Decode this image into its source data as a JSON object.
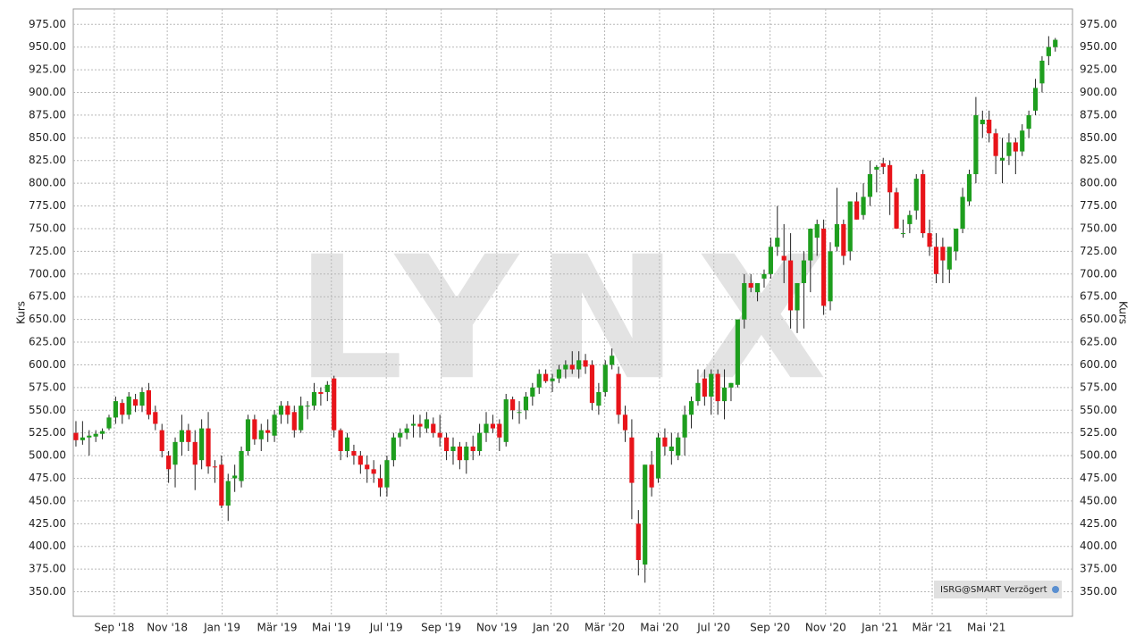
{
  "chart_data": {
    "type": "candlestick",
    "y_label": "Kurs",
    "watermark": "LYNX",
    "source_note": "ISRG@SMART Verzögert",
    "up_color": "#1e9e1e",
    "down_color": "#e8141a",
    "grid": true,
    "ylim": [
      323,
      992
    ],
    "yticks": [
      {
        "value": 350,
        "label": "350.00"
      },
      {
        "value": 375,
        "label": "375.00"
      },
      {
        "value": 400,
        "label": "400.00"
      },
      {
        "value": 425,
        "label": "425.00"
      },
      {
        "value": 450,
        "label": "450.00"
      },
      {
        "value": 475,
        "label": "475.00"
      },
      {
        "value": 500,
        "label": "500.00"
      },
      {
        "value": 525,
        "label": "525.00"
      },
      {
        "value": 550,
        "label": "550.00"
      },
      {
        "value": 575,
        "label": "575.00"
      },
      {
        "value": 600,
        "label": "600.00"
      },
      {
        "value": 625,
        "label": "625.00"
      },
      {
        "value": 650,
        "label": "650.00"
      },
      {
        "value": 675,
        "label": "675.00"
      },
      {
        "value": 700,
        "label": "700.00"
      },
      {
        "value": 725,
        "label": "725.00"
      },
      {
        "value": 750,
        "label": "750.00"
      },
      {
        "value": 775,
        "label": "775.00"
      },
      {
        "value": 800,
        "label": "800.00"
      },
      {
        "value": 825,
        "label": "825.00"
      },
      {
        "value": 850,
        "label": "850.00"
      },
      {
        "value": 875,
        "label": "875.00"
      },
      {
        "value": 900,
        "label": "900.00"
      },
      {
        "value": 925,
        "label": "925.00"
      },
      {
        "value": 950,
        "label": "950.00"
      },
      {
        "value": 975,
        "label": "975.00"
      }
    ],
    "xlim": [
      -0.4,
      150.6
    ],
    "xticks": [
      {
        "value": 5.8,
        "label": "Sep '18"
      },
      {
        "value": 13.8,
        "label": "Nov '18"
      },
      {
        "value": 22.1,
        "label": "Jan '19"
      },
      {
        "value": 30.4,
        "label": "Mär '19"
      },
      {
        "value": 38.6,
        "label": "Mai '19"
      },
      {
        "value": 46.9,
        "label": "Jul '19"
      },
      {
        "value": 55.2,
        "label": "Sep '19"
      },
      {
        "value": 63.6,
        "label": "Nov '19"
      },
      {
        "value": 71.8,
        "label": "Jan '20"
      },
      {
        "value": 79.9,
        "label": "Mär '20"
      },
      {
        "value": 88.2,
        "label": "Mai '20"
      },
      {
        "value": 96.4,
        "label": "Jul '20"
      },
      {
        "value": 104.9,
        "label": "Sep '20"
      },
      {
        "value": 113.3,
        "label": "Nov '20"
      },
      {
        "value": 121.5,
        "label": "Jan '21"
      },
      {
        "value": 129.4,
        "label": "Mär '21"
      },
      {
        "value": 137.6,
        "label": "Mai '21"
      }
    ],
    "candles": [
      [
        525,
        538,
        510,
        517
      ],
      [
        517,
        538,
        512,
        520
      ],
      [
        520,
        528,
        500,
        522
      ],
      [
        521,
        528,
        515,
        524
      ],
      [
        524,
        530,
        518,
        527
      ],
      [
        530,
        545,
        528,
        542
      ],
      [
        542,
        565,
        535,
        560
      ],
      [
        558,
        562,
        535,
        545
      ],
      [
        545,
        570,
        540,
        565
      ],
      [
        562,
        568,
        548,
        555
      ],
      [
        555,
        575,
        548,
        570
      ],
      [
        572,
        580,
        540,
        545
      ],
      [
        548,
        555,
        528,
        535
      ],
      [
        528,
        535,
        498,
        505
      ],
      [
        500,
        505,
        470,
        485
      ],
      [
        490,
        520,
        465,
        515
      ],
      [
        515,
        545,
        500,
        528
      ],
      [
        528,
        535,
        505,
        515
      ],
      [
        515,
        528,
        462,
        490
      ],
      [
        495,
        540,
        485,
        530
      ],
      [
        530,
        548,
        480,
        488
      ],
      [
        488,
        495,
        470,
        487
      ],
      [
        490,
        500,
        442,
        445
      ],
      [
        445,
        480,
        428,
        472
      ],
      [
        475,
        490,
        460,
        478
      ],
      [
        472,
        510,
        465,
        505
      ],
      [
        505,
        545,
        500,
        540
      ],
      [
        540,
        545,
        512,
        518
      ],
      [
        518,
        535,
        505,
        528
      ],
      [
        528,
        540,
        515,
        525
      ],
      [
        522,
        550,
        515,
        545
      ],
      [
        545,
        560,
        535,
        555
      ],
      [
        555,
        560,
        535,
        545
      ],
      [
        548,
        555,
        520,
        528
      ],
      [
        528,
        565,
        525,
        555
      ],
      [
        555,
        560,
        540,
        555
      ],
      [
        555,
        580,
        550,
        570
      ],
      [
        570,
        575,
        555,
        568
      ],
      [
        570,
        582,
        560,
        578
      ],
      [
        585,
        588,
        520,
        528
      ],
      [
        528,
        530,
        495,
        505
      ],
      [
        505,
        525,
        498,
        520
      ],
      [
        505,
        512,
        490,
        500
      ],
      [
        500,
        505,
        480,
        490
      ],
      [
        490,
        500,
        470,
        485
      ],
      [
        485,
        495,
        470,
        480
      ],
      [
        475,
        490,
        455,
        465
      ],
      [
        465,
        500,
        455,
        495
      ],
      [
        495,
        525,
        488,
        520
      ],
      [
        520,
        530,
        510,
        525
      ],
      [
        525,
        535,
        518,
        530
      ],
      [
        533,
        545,
        520,
        535
      ],
      [
        535,
        545,
        520,
        532
      ],
      [
        530,
        548,
        525,
        540
      ],
      [
        535,
        542,
        520,
        525
      ],
      [
        525,
        545,
        510,
        520
      ],
      [
        520,
        525,
        495,
        505
      ],
      [
        505,
        520,
        490,
        510
      ],
      [
        510,
        515,
        485,
        495
      ],
      [
        495,
        515,
        480,
        510
      ],
      [
        510,
        522,
        495,
        505
      ],
      [
        505,
        535,
        500,
        525
      ],
      [
        525,
        548,
        515,
        535
      ],
      [
        535,
        545,
        525,
        530
      ],
      [
        535,
        540,
        505,
        520
      ],
      [
        515,
        568,
        510,
        562
      ],
      [
        562,
        565,
        540,
        550
      ],
      [
        548,
        560,
        535,
        548
      ],
      [
        550,
        570,
        540,
        565
      ],
      [
        565,
        580,
        555,
        575
      ],
      [
        575,
        595,
        568,
        590
      ],
      [
        590,
        595,
        580,
        582
      ],
      [
        582,
        590,
        570,
        585
      ],
      [
        585,
        600,
        580,
        595
      ],
      [
        595,
        605,
        585,
        600
      ],
      [
        600,
        615,
        590,
        595
      ],
      [
        595,
        615,
        585,
        605
      ],
      [
        605,
        612,
        590,
        598
      ],
      [
        600,
        605,
        550,
        558
      ],
      [
        555,
        580,
        545,
        570
      ],
      [
        570,
        605,
        565,
        600
      ],
      [
        600,
        618,
        595,
        610
      ],
      [
        590,
        598,
        535,
        545
      ],
      [
        545,
        555,
        515,
        528
      ],
      [
        520,
        540,
        430,
        470
      ],
      [
        425,
        440,
        368,
        385
      ],
      [
        380,
        490,
        360,
        490
      ],
      [
        490,
        505,
        455,
        465
      ],
      [
        475,
        525,
        470,
        520
      ],
      [
        520,
        530,
        500,
        510
      ],
      [
        505,
        525,
        490,
        510
      ],
      [
        500,
        525,
        495,
        520
      ],
      [
        520,
        555,
        500,
        545
      ],
      [
        545,
        565,
        530,
        560
      ],
      [
        560,
        595,
        555,
        580
      ],
      [
        585,
        595,
        555,
        565
      ],
      [
        565,
        595,
        545,
        590
      ],
      [
        590,
        595,
        545,
        560
      ],
      [
        560,
        595,
        540,
        575
      ],
      [
        575,
        580,
        560,
        580
      ],
      [
        578,
        650,
        575,
        650
      ],
      [
        650,
        700,
        640,
        690
      ],
      [
        690,
        700,
        680,
        685
      ],
      [
        680,
        690,
        670,
        690
      ],
      [
        695,
        705,
        685,
        700
      ],
      [
        700,
        740,
        695,
        730
      ],
      [
        730,
        775,
        720,
        740
      ],
      [
        720,
        755,
        690,
        715
      ],
      [
        715,
        745,
        640,
        660
      ],
      [
        660,
        690,
        635,
        690
      ],
      [
        690,
        725,
        640,
        715
      ],
      [
        715,
        750,
        680,
        750
      ],
      [
        740,
        760,
        720,
        755
      ],
      [
        750,
        760,
        655,
        665
      ],
      [
        670,
        735,
        660,
        725
      ],
      [
        730,
        795,
        725,
        755
      ],
      [
        755,
        760,
        710,
        720
      ],
      [
        725,
        780,
        715,
        780
      ],
      [
        780,
        790,
        760,
        760
      ],
      [
        765,
        800,
        760,
        785
      ],
      [
        785,
        825,
        775,
        810
      ],
      [
        815,
        820,
        790,
        818
      ],
      [
        822,
        828,
        810,
        818
      ],
      [
        820,
        825,
        765,
        790
      ],
      [
        790,
        795,
        750,
        750
      ],
      [
        745,
        760,
        740,
        745
      ],
      [
        755,
        770,
        745,
        765
      ],
      [
        770,
        810,
        760,
        805
      ],
      [
        810,
        815,
        740,
        745
      ],
      [
        745,
        760,
        720,
        730
      ],
      [
        730,
        745,
        690,
        700
      ],
      [
        730,
        740,
        690,
        715
      ],
      [
        705,
        730,
        690,
        730
      ],
      [
        725,
        750,
        715,
        750
      ],
      [
        750,
        795,
        745,
        785
      ],
      [
        780,
        815,
        775,
        810
      ],
      [
        810,
        895,
        800,
        875
      ],
      [
        865,
        880,
        850,
        870
      ],
      [
        870,
        880,
        845,
        855
      ],
      [
        855,
        860,
        810,
        830
      ],
      [
        825,
        850,
        800,
        828
      ],
      [
        830,
        855,
        820,
        845
      ],
      [
        845,
        850,
        810,
        835
      ],
      [
        835,
        865,
        830,
        858
      ],
      [
        860,
        880,
        850,
        875
      ],
      [
        880,
        915,
        875,
        905
      ],
      [
        910,
        940,
        900,
        935
      ],
      [
        940,
        962,
        930,
        950
      ],
      [
        950,
        960,
        945,
        958
      ]
    ]
  }
}
